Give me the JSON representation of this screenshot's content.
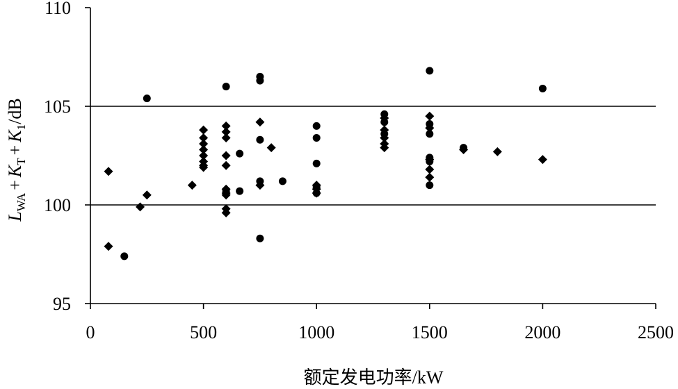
{
  "chart_data": {
    "type": "scatter",
    "title": "",
    "xlabel": "额定发电功率/kW",
    "ylabel": {
      "L": "L",
      "WA": "WA",
      "plus": "+",
      "K": "K",
      "T": "T",
      "one": "1",
      "unit": "/dB"
    },
    "xlim": [
      0,
      2500
    ],
    "ylim": [
      95,
      110
    ],
    "xticks": [
      0,
      500,
      1000,
      1500,
      2000,
      2500
    ],
    "yticks": [
      95,
      100,
      105,
      110
    ],
    "grid": {
      "horizontal_lines_at": [
        100,
        105
      ]
    },
    "series": [
      {
        "marker": "diamond",
        "points": [
          [
            80,
            101.7
          ],
          [
            80,
            97.9
          ],
          [
            220,
            99.9
          ],
          [
            250,
            100.5
          ],
          [
            450,
            101.0
          ],
          [
            500,
            103.8
          ],
          [
            500,
            103.4
          ],
          [
            500,
            103.1
          ],
          [
            500,
            102.8
          ],
          [
            500,
            102.5
          ],
          [
            500,
            102.2
          ],
          [
            500,
            102.0
          ],
          [
            500,
            101.9
          ],
          [
            600,
            104.0
          ],
          [
            600,
            103.7
          ],
          [
            600,
            103.4
          ],
          [
            600,
            102.5
          ],
          [
            600,
            102.0
          ],
          [
            600,
            100.8
          ],
          [
            600,
            100.6
          ],
          [
            600,
            100.5
          ],
          [
            600,
            99.8
          ],
          [
            600,
            99.6
          ],
          [
            750,
            104.2
          ],
          [
            750,
            101.0
          ],
          [
            800,
            102.9
          ],
          [
            1000,
            101.0
          ],
          [
            1000,
            100.8
          ],
          [
            1000,
            100.6
          ],
          [
            1300,
            104.4
          ],
          [
            1300,
            103.8
          ],
          [
            1300,
            103.4
          ],
          [
            1300,
            103.1
          ],
          [
            1300,
            102.9
          ],
          [
            1500,
            104.5
          ],
          [
            1500,
            103.9
          ],
          [
            1500,
            102.3
          ],
          [
            1500,
            101.8
          ],
          [
            1500,
            101.4
          ],
          [
            1650,
            102.8
          ],
          [
            1800,
            102.7
          ],
          [
            2000,
            102.3
          ]
        ]
      },
      {
        "marker": "circle",
        "points": [
          [
            150,
            97.4
          ],
          [
            250,
            105.4
          ],
          [
            600,
            106.0
          ],
          [
            600,
            100.7
          ],
          [
            660,
            102.6
          ],
          [
            660,
            100.7
          ],
          [
            750,
            106.5
          ],
          [
            750,
            106.3
          ],
          [
            750,
            103.3
          ],
          [
            750,
            101.2
          ],
          [
            750,
            98.3
          ],
          [
            850,
            101.2
          ],
          [
            1000,
            104.0
          ],
          [
            1000,
            103.4
          ],
          [
            1000,
            102.1
          ],
          [
            1000,
            100.9
          ],
          [
            1000,
            100.6
          ],
          [
            1300,
            104.6
          ],
          [
            1300,
            104.2
          ],
          [
            1300,
            103.6
          ],
          [
            1500,
            106.8
          ],
          [
            1500,
            104.1
          ],
          [
            1500,
            103.6
          ],
          [
            1500,
            102.4
          ],
          [
            1500,
            102.2
          ],
          [
            1500,
            101.0
          ],
          [
            1650,
            102.9
          ],
          [
            2000,
            105.9
          ]
        ]
      }
    ]
  }
}
